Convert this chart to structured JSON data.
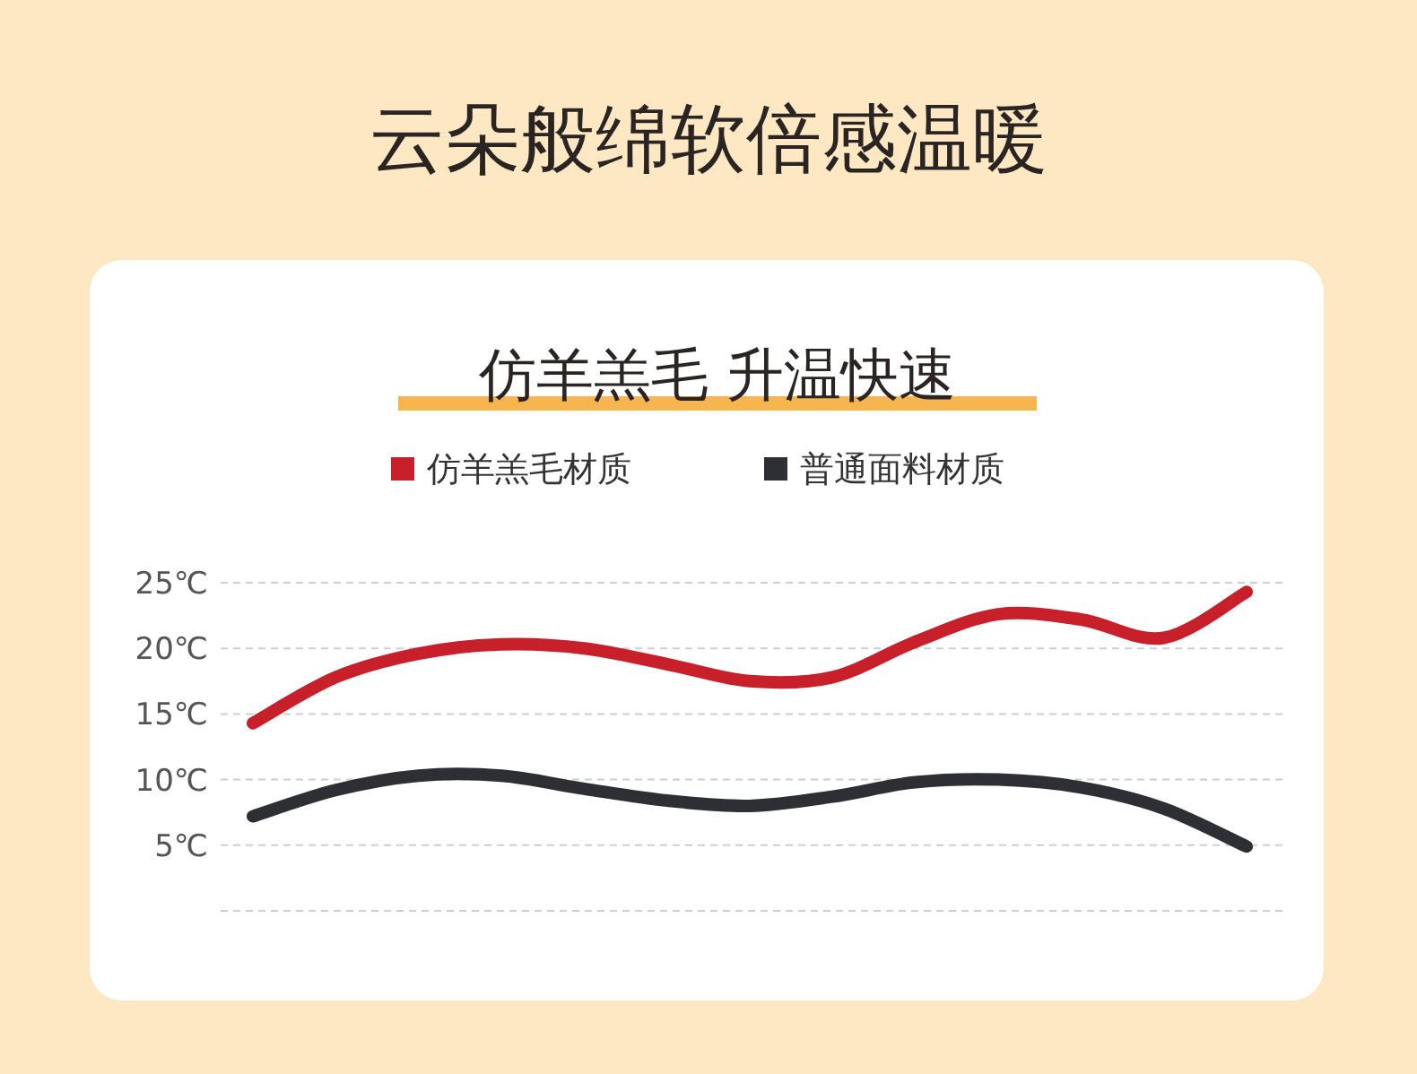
{
  "chart_data": {
    "type": "line",
    "title": "云朵般绵软倍感温暖",
    "subtitle": "仿羊羔毛 升温快速",
    "categories": [
      null,
      null,
      null,
      null,
      null,
      null,
      null,
      null,
      null,
      null,
      null,
      null,
      null
    ],
    "series": [
      {
        "name": "仿羊羔毛材质",
        "color": "#c8202a",
        "values": [
          14.3,
          17.8,
          19.6,
          20.3,
          20.0,
          18.8,
          17.5,
          17.8,
          20.5,
          22.6,
          22.2,
          20.8,
          24.3
        ]
      },
      {
        "name": "普通面料材质",
        "color": "#2e2e35",
        "values": [
          7.2,
          9.2,
          10.3,
          10.3,
          9.3,
          8.4,
          8.0,
          8.7,
          9.8,
          10.0,
          9.4,
          7.8,
          4.9
        ]
      }
    ],
    "ylim": [
      0,
      25
    ],
    "yticks": [
      {
        "value": 0,
        "label": null
      },
      {
        "value": 5,
        "label": "5℃"
      },
      {
        "value": 10,
        "label": "10℃"
      },
      {
        "value": 15,
        "label": "15℃"
      },
      {
        "value": 20,
        "label": "20℃"
      },
      {
        "value": 25,
        "label": "25℃"
      }
    ],
    "grid": "y",
    "legend": "top",
    "marker": "none",
    "line_style": "solid"
  }
}
